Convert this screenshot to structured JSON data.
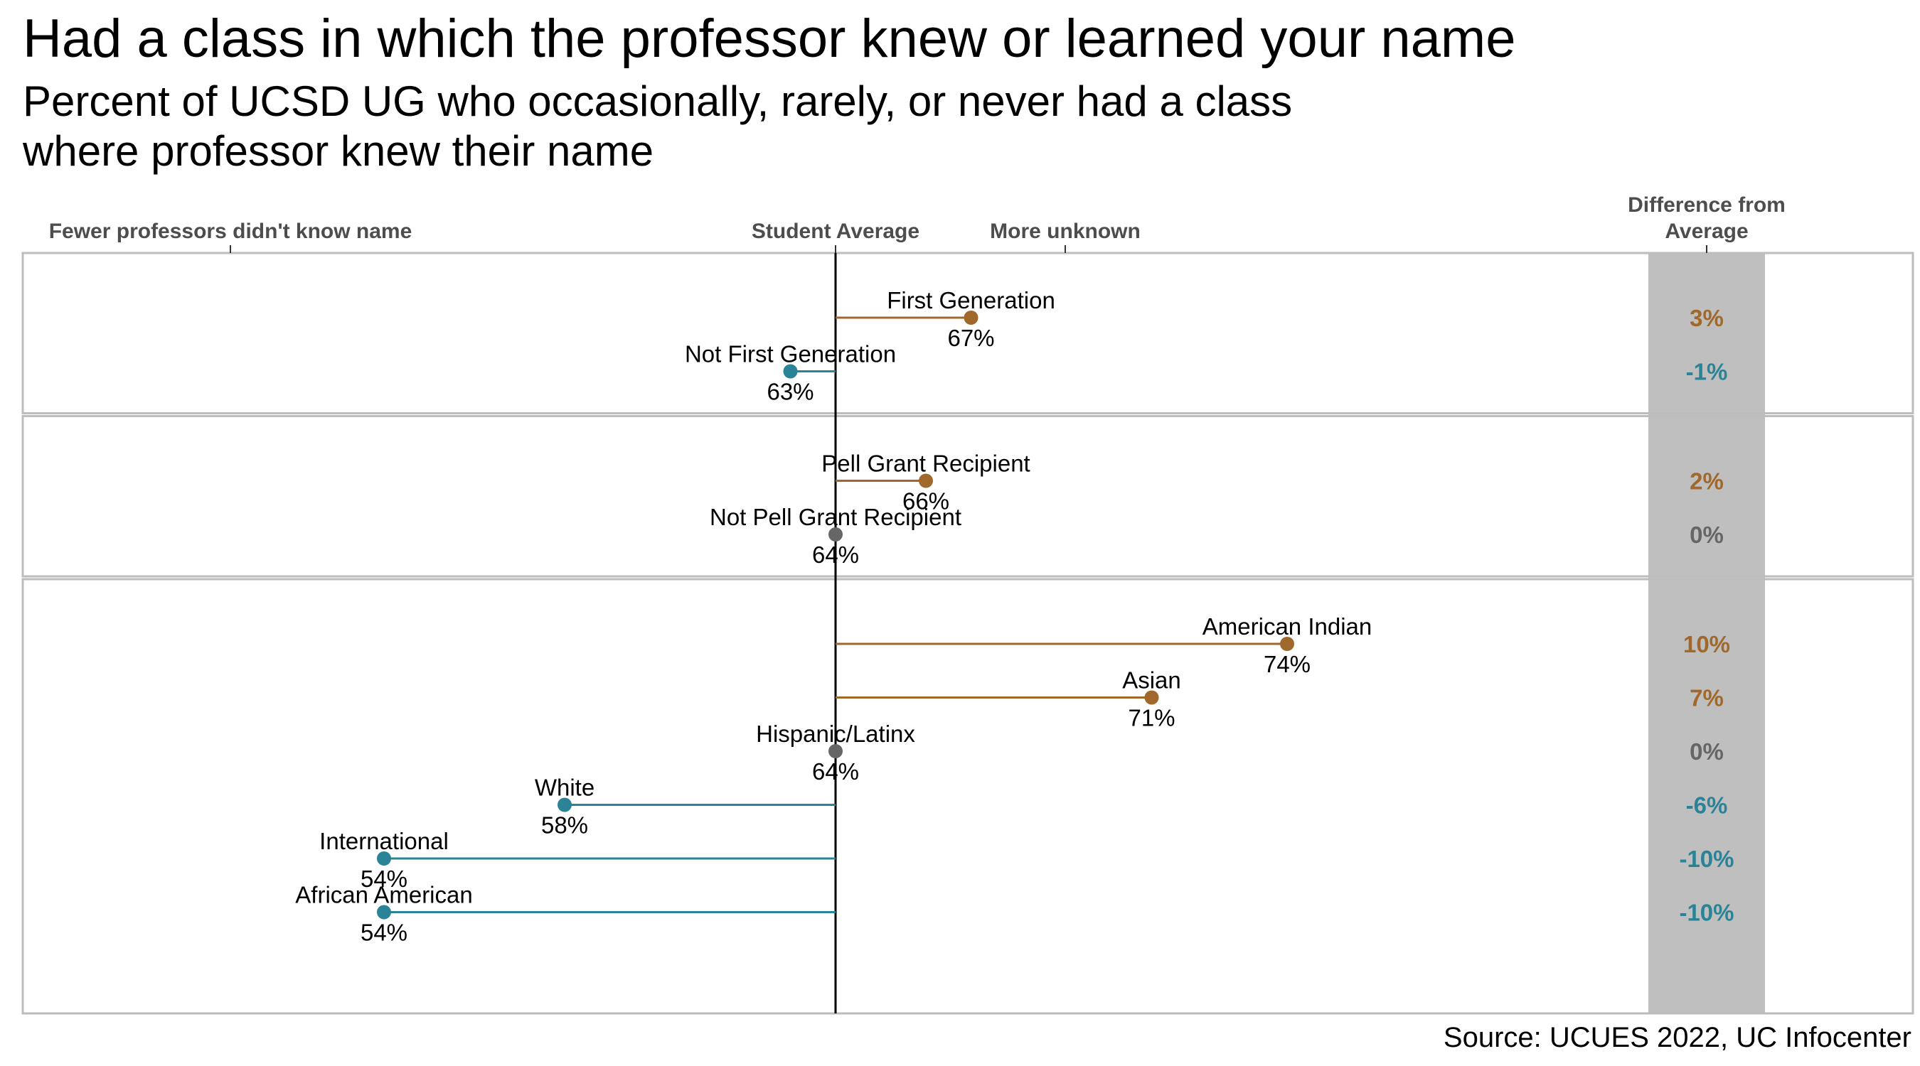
{
  "title": "Had a class in which the professor knew or learned your name",
  "subtitle_lines": [
    "Percent of UCSD UG who occasionally, rarely, or never had a class",
    "where professor knew their name"
  ],
  "caption": "Source: UCUES 2022, UC Infocenter",
  "colors": {
    "above": "#a0682a",
    "below": "#2a8396",
    "equal": "#666666",
    "average_line": "#000000",
    "panel_border": "#bdbdbd",
    "diff_column_bg": "#bfbfbf"
  },
  "chart_data": {
    "type": "lollipop",
    "average": 64,
    "xlim": [
      46,
      82
    ],
    "axis_top_labels": {
      "left": "Fewer professors didn't know name",
      "center": "Student Average",
      "right": "More unknown"
    },
    "diff_header": [
      "Difference from",
      "Average"
    ],
    "panels": [
      {
        "groups": [
          {
            "name": "First Generation",
            "value": 67,
            "label": "67%",
            "diff": "3%",
            "direction": "above"
          },
          {
            "name": "Not First Generation",
            "value": 63,
            "label": "63%",
            "diff": "-1%",
            "direction": "below"
          }
        ]
      },
      {
        "groups": [
          {
            "name": "Pell Grant Recipient",
            "value": 66,
            "label": "66%",
            "diff": "2%",
            "direction": "above"
          },
          {
            "name": "Not Pell Grant Recipient",
            "value": 64,
            "label": "64%",
            "diff": "0%",
            "direction": "equal"
          }
        ]
      },
      {
        "groups": [
          {
            "name": "American Indian",
            "value": 74,
            "label": "74%",
            "diff": "10%",
            "direction": "above"
          },
          {
            "name": "Asian",
            "value": 71,
            "label": "71%",
            "diff": "7%",
            "direction": "above"
          },
          {
            "name": "Hispanic/Latinx",
            "value": 64,
            "label": "64%",
            "diff": "0%",
            "direction": "equal"
          },
          {
            "name": "White",
            "value": 58,
            "label": "58%",
            "diff": "-6%",
            "direction": "below"
          },
          {
            "name": "International",
            "value": 54,
            "label": "54%",
            "diff": "-10%",
            "direction": "below"
          },
          {
            "name": "African American",
            "value": 54,
            "label": "54%",
            "diff": "-10%",
            "direction": "below"
          }
        ]
      }
    ]
  }
}
